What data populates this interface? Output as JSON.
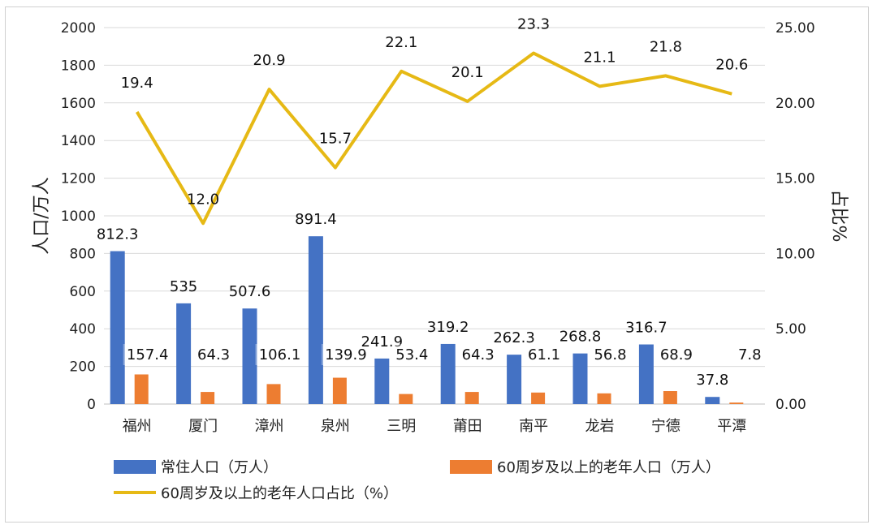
{
  "chart_data": {
    "type": "bar",
    "categories": [
      "福州",
      "厦门",
      "漳州",
      "泉州",
      "三明",
      "莆田",
      "南平",
      "龙岩",
      "宁德",
      "平潭"
    ],
    "series": [
      {
        "name": "常住人口（万人）",
        "type": "bar",
        "axis": "left",
        "color": "#4472C4",
        "values": [
          812.3,
          535,
          507.6,
          891.4,
          241.9,
          319.2,
          262.3,
          268.8,
          316.7,
          37.8
        ],
        "labels": [
          "812.3",
          "535",
          "507.6",
          "891.4",
          "241.9",
          "319.2",
          "262.3",
          "268.8",
          "316.7",
          "37.8"
        ]
      },
      {
        "name": "60周岁及以上的老年人口（万人）",
        "type": "bar",
        "axis": "left",
        "color": "#ED7D31",
        "values": [
          157.4,
          64.3,
          106.1,
          139.9,
          53.4,
          64.3,
          61.1,
          56.8,
          68.9,
          7.8
        ],
        "labels": [
          "157.4",
          "64.3",
          "106.1",
          "139.9",
          "53.4",
          "64.3",
          "61.1",
          "56.8",
          "68.9",
          "7.8"
        ]
      },
      {
        "name": "60周岁及以上的老年人口占比（%）",
        "type": "line",
        "axis": "right",
        "color": "#E6B915",
        "values": [
          19.4,
          12.0,
          20.9,
          15.7,
          22.1,
          20.1,
          23.3,
          21.1,
          21.8,
          20.6
        ],
        "labels": [
          "19.4",
          "12.0",
          "20.9",
          "15.7",
          "22.1",
          "20.1",
          "23.3",
          "21.1",
          "21.8",
          "20.6"
        ]
      }
    ],
    "ylabel": "人口/万人",
    "y2label": "占比%",
    "ylim": [
      0,
      2000
    ],
    "y2lim": [
      0,
      25
    ],
    "yticks": [
      "0",
      "200",
      "400",
      "600",
      "800",
      "1000",
      "1200",
      "1400",
      "1600",
      "1800",
      "2000"
    ],
    "y2ticks": [
      "0.00",
      "5.00",
      "10.00",
      "15.00",
      "20.00",
      "25.00"
    ],
    "grid": true,
    "legend_position": "bottom"
  }
}
